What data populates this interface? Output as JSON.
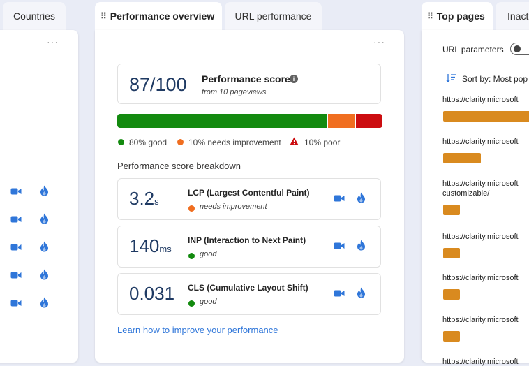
{
  "left_panel": {
    "tab_label": "Countries",
    "more_label": "···"
  },
  "center_panel": {
    "tabs": [
      {
        "label": "Performance overview",
        "active": true
      },
      {
        "label": "URL performance",
        "active": false
      }
    ],
    "more_label": "···",
    "score": {
      "value": "87/100",
      "title": "Performance score",
      "subtitle": "from 10 pageviews",
      "info_icon": "info-icon"
    },
    "distribution": {
      "good_pct": 80,
      "needs_improvement_pct": 10,
      "poor_pct": 10,
      "good_label": "80% good",
      "needs_label": "10% needs improvement",
      "poor_label": "10% poor",
      "colors": {
        "good": "#138a0f",
        "needs": "#f06e20",
        "poor": "#cc0d10"
      }
    },
    "breakdown_title": "Performance score breakdown",
    "metrics": [
      {
        "value": "3.2",
        "unit": "s",
        "name": "LCP (Largest Contentful Paint)",
        "status": "needs improvement",
        "status_color": "#f06e20"
      },
      {
        "value": "140",
        "unit": "ms",
        "name": "INP (Interaction to Next Paint)",
        "status": "good",
        "status_color": "#138a0f"
      },
      {
        "value": "0.031",
        "unit": "",
        "name": "CLS (Cumulative Layout Shift)",
        "status": "good",
        "status_color": "#138a0f"
      }
    ],
    "learn_link": "Learn how to improve your performance"
  },
  "right_panel": {
    "tabs": [
      {
        "label": "Top pages",
        "active": true
      },
      {
        "label": "Inact",
        "active": false
      }
    ],
    "url_params_label": "URL parameters",
    "sort_label": "Sort by: Most pop",
    "rows": [
      {
        "lines": [
          "https://clarity.microsoft"
        ],
        "value_pct": 100
      },
      {
        "lines": [
          "https://clarity.microsoft"
        ],
        "value_pct": 42
      },
      {
        "lines": [
          "https://clarity.microsoft",
          "customizable/"
        ],
        "value_pct": 13
      },
      {
        "lines": [
          "https://clarity.microsoft"
        ],
        "value_pct": 12
      },
      {
        "lines": [
          "https://clarity.microsoft"
        ],
        "value_pct": 9
      },
      {
        "lines": [
          "https://clarity.microsoft"
        ],
        "value_pct": 8
      },
      {
        "lines": [
          "https://clarity.microsoft"
        ],
        "value_pct": null
      }
    ]
  },
  "colors": {
    "accent_blue": "#2f76d9",
    "link": "#2f76d9",
    "bar_orange": "#d98a1f"
  }
}
